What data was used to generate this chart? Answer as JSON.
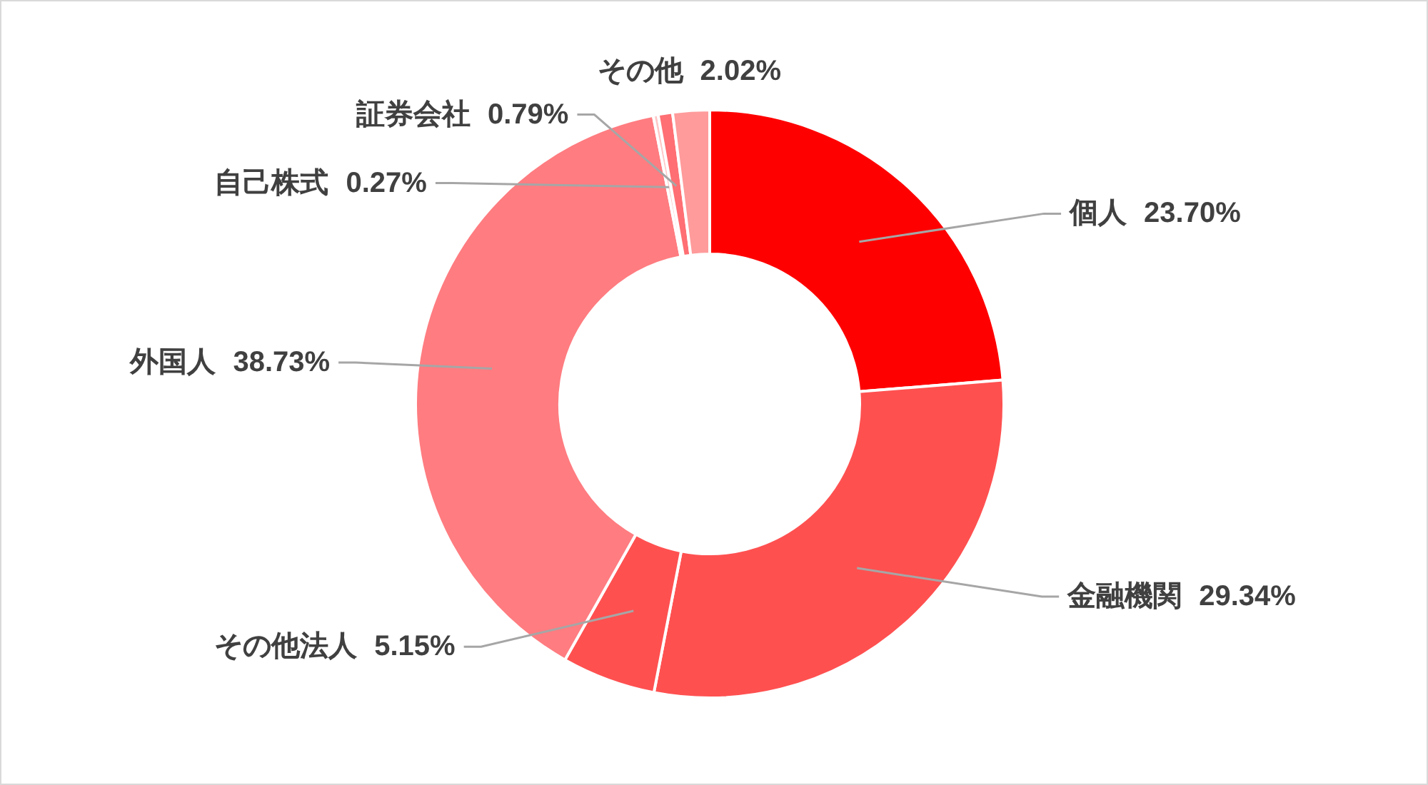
{
  "chart_data": {
    "type": "donut",
    "categories": [
      "個人",
      "金融機関",
      "その他法人",
      "外国人",
      "自己株式",
      "証券会社",
      "その他"
    ],
    "values": [
      23.7,
      29.34,
      5.15,
      38.73,
      0.27,
      0.79,
      2.02
    ],
    "value_labels": [
      "23.70%",
      "29.34%",
      "5.15%",
      "38.73%",
      "0.27%",
      "0.79%",
      "2.02%"
    ],
    "colors": [
      "#ff0000",
      "#ff5050",
      "#ff5050",
      "#ff7c80",
      "#ffc7c7",
      "#ff6f73",
      "#ff9b9b"
    ]
  }
}
